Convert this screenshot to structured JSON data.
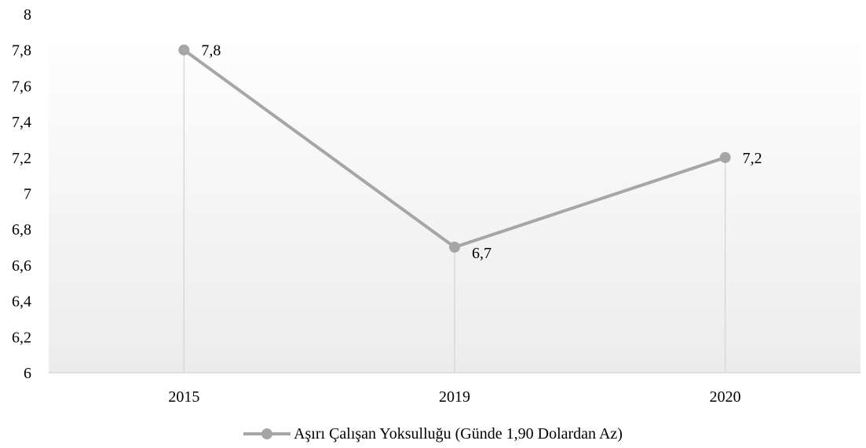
{
  "chart_data": {
    "type": "line",
    "categories": [
      "2015",
      "2019",
      "2020"
    ],
    "series": [
      {
        "name": "Aşırı Çalışan Yoksulluğu (Günde 1,90 Dolardan Az)",
        "values": [
          7.8,
          6.7,
          7.2
        ]
      }
    ],
    "data_labels": [
      "7,8",
      "6,7",
      "7,2"
    ],
    "ylim": [
      6,
      8
    ],
    "yticks": [
      "6",
      "6,2",
      "6,4",
      "6,6",
      "6,8",
      "7",
      "7,2",
      "7,4",
      "7,6",
      "7,8",
      "8"
    ],
    "grid": false,
    "drop_lines": true,
    "legend_position": "bottom",
    "colors": {
      "series": "#a6a6a6",
      "drop_line": "#d9d9d9",
      "axis": "#d9d9d9",
      "plot_bg_top": "#ffffff",
      "plot_bg_bottom": "#ececec"
    }
  }
}
